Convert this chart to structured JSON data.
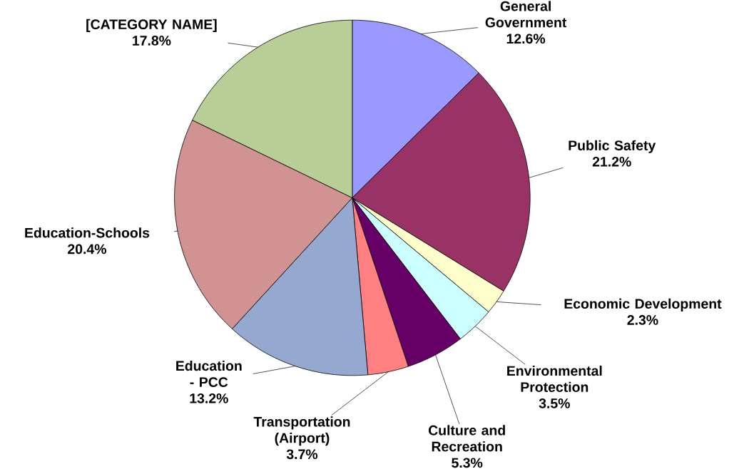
{
  "chart_data": {
    "type": "pie",
    "categories": [
      "General Government",
      "Public Safety",
      "Economic Development",
      "Environmental Protection",
      "Culture and Recreation",
      "Transportation (Airport)",
      "Education - PCC",
      "Education-Schools",
      "[CATEGORY NAME]"
    ],
    "values": [
      12.6,
      21.2,
      2.3,
      3.5,
      5.3,
      3.7,
      13.2,
      20.4,
      17.8
    ],
    "value_labels": [
      "12.6%",
      "21.2%",
      "2.3%",
      "3.5%",
      "5.3%",
      "3.7%",
      "13.2%",
      "20.4%",
      "17.8%"
    ],
    "colors": [
      "#9999ff",
      "#993366",
      "#ffffcc",
      "#ccffff",
      "#660066",
      "#ff8080",
      "#95a9d0",
      "#d19392",
      "#b9cd96"
    ]
  }
}
